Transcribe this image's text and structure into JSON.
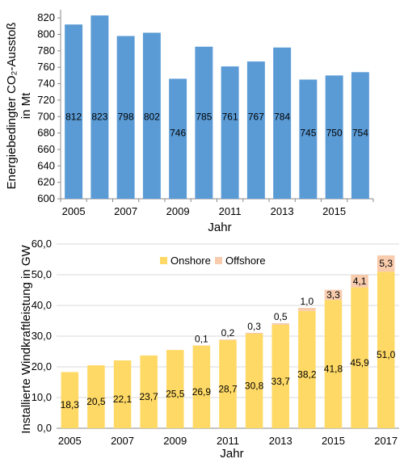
{
  "chart_data": [
    {
      "type": "bar",
      "categories": [
        "2005",
        "2006",
        "2007",
        "2008",
        "2009",
        "2010",
        "2011",
        "2012",
        "2013",
        "2014",
        "2015",
        "2016"
      ],
      "x_tick_labels": [
        "2005",
        "",
        "2007",
        "",
        "2009",
        "",
        "2011",
        "",
        "2013",
        "",
        "2015",
        ""
      ],
      "values": [
        812,
        823,
        798,
        802,
        746,
        785,
        761,
        767,
        784,
        745,
        750,
        754
      ],
      "data_labels": [
        "812",
        "823",
        "798",
        "802",
        "746",
        "785",
        "761",
        "767",
        "784",
        "745",
        "750",
        "754"
      ],
      "y_ticks": [
        "600",
        "620",
        "640",
        "660",
        "680",
        "700",
        "720",
        "740",
        "760",
        "780",
        "800",
        "820"
      ],
      "ylim": [
        600,
        830
      ],
      "xlabel": "Jahr",
      "ylabel_line1": "Energiebedingter CO₂-Ausstoß",
      "ylabel_line2": "in Mt",
      "color": "#5b9bd5",
      "grid": false
    },
    {
      "type": "bar",
      "stacked": true,
      "categories": [
        "2005",
        "2006",
        "2007",
        "2008",
        "2009",
        "2010",
        "2011",
        "2012",
        "2013",
        "2014",
        "2015",
        "2016",
        "2017"
      ],
      "x_tick_labels": [
        "2005",
        "",
        "2007",
        "",
        "2009",
        "",
        "2011",
        "",
        "2013",
        "",
        "2015",
        "",
        "2017"
      ],
      "series": [
        {
          "name": "Onshore",
          "color": "#ffd966",
          "values": [
            18.3,
            20.5,
            22.1,
            23.7,
            25.5,
            26.9,
            28.7,
            30.8,
            33.7,
            38.2,
            41.8,
            45.9,
            51.0
          ],
          "data_labels": [
            "18,3",
            "20,5",
            "22,1",
            "23,7",
            "25,5",
            "26,9",
            "28,7",
            "30,8",
            "33,7",
            "38,2",
            "41,8",
            "45,9",
            "51,0"
          ]
        },
        {
          "name": "Offshore",
          "color": "#f8cbad",
          "values": [
            0,
            0,
            0,
            0,
            0,
            0.1,
            0.2,
            0.3,
            0.5,
            1.0,
            3.3,
            4.1,
            5.3
          ],
          "data_labels": [
            "",
            "",
            "",
            "",
            "",
            "0,1",
            "0,2",
            "0,3",
            "0,5",
            "1,0",
            "3,3",
            "4,1",
            "5,3"
          ]
        }
      ],
      "y_ticks": [
        "0,0",
        "10,0",
        "20,0",
        "30,0",
        "40,0",
        "50,0",
        "60,0"
      ],
      "ylim": [
        0,
        60
      ],
      "xlabel": "Jahr",
      "ylabel": "Installierte Windkraftleistung in GW",
      "legend_position": "top-center",
      "grid": true
    }
  ]
}
